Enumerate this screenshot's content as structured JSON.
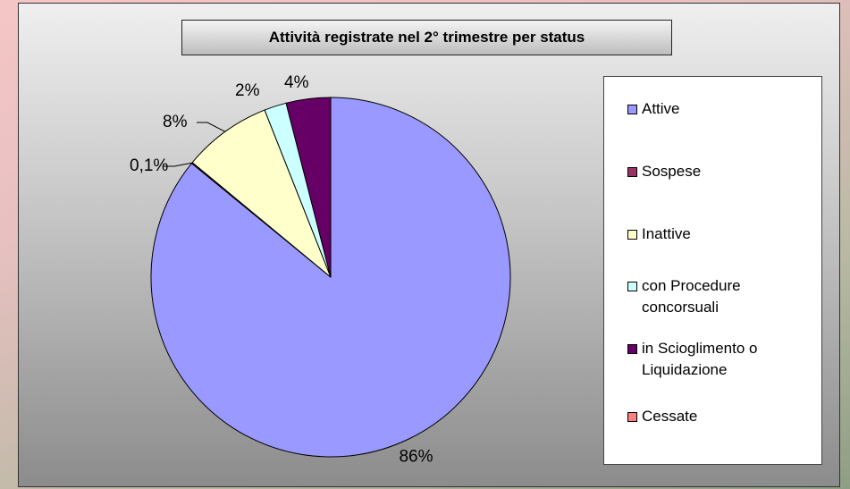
{
  "chart_data": {
    "type": "pie",
    "title": "Attività registrate nel 2° trimestre per status",
    "categories": [
      "Attive",
      "Sospese",
      "Inattive",
      "con Procedure concorsuali",
      "in Scioglimento o Liquidazione",
      "Cessate"
    ],
    "values": [
      86,
      0.1,
      8,
      2,
      4,
      0
    ],
    "value_labels": [
      "86%",
      "0,1%",
      "8%",
      "2%",
      "4%",
      null
    ],
    "colors": [
      "#9999ff",
      "#993366",
      "#ffffcc",
      "#ccffff",
      "#660066",
      "#ff8080"
    ],
    "legend": "right"
  }
}
